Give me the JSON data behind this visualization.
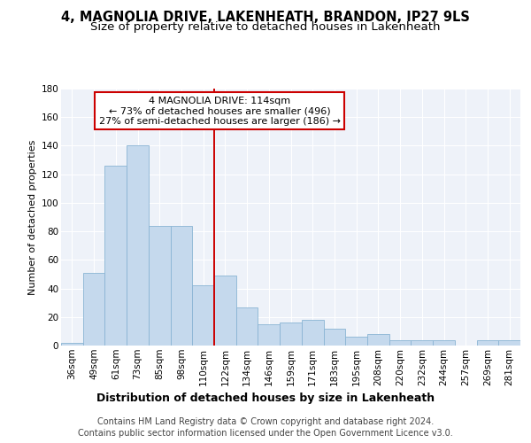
{
  "title": "4, MAGNOLIA DRIVE, LAKENHEATH, BRANDON, IP27 9LS",
  "subtitle": "Size of property relative to detached houses in Lakenheath",
  "xlabel": "Distribution of detached houses by size in Lakenheath",
  "ylabel": "Number of detached properties",
  "categories": [
    "36sqm",
    "49sqm",
    "61sqm",
    "73sqm",
    "85sqm",
    "98sqm",
    "110sqm",
    "122sqm",
    "134sqm",
    "146sqm",
    "159sqm",
    "171sqm",
    "183sqm",
    "195sqm",
    "208sqm",
    "220sqm",
    "232sqm",
    "244sqm",
    "257sqm",
    "269sqm",
    "281sqm"
  ],
  "values": [
    2,
    51,
    126,
    140,
    84,
    84,
    42,
    49,
    27,
    15,
    16,
    18,
    12,
    6,
    8,
    4,
    4,
    4,
    0,
    4,
    4
  ],
  "bar_color": "#c5d9ed",
  "bar_edge_color": "#8ab4d4",
  "background_color": "#eef2f9",
  "grid_color": "#ffffff",
  "vline_color": "#cc0000",
  "annotation_line1": "4 MAGNOLIA DRIVE: 114sqm",
  "annotation_line2": "← 73% of detached houses are smaller (496)",
  "annotation_line3": "27% of semi-detached houses are larger (186) →",
  "annotation_box_color": "#ffffff",
  "annotation_box_edge": "#cc0000",
  "ylim": [
    0,
    180
  ],
  "yticks": [
    0,
    20,
    40,
    60,
    80,
    100,
    120,
    140,
    160,
    180
  ],
  "footer_line1": "Contains HM Land Registry data © Crown copyright and database right 2024.",
  "footer_line2": "Contains public sector information licensed under the Open Government Licence v3.0.",
  "title_fontsize": 10.5,
  "subtitle_fontsize": 9.5,
  "xlabel_fontsize": 9,
  "ylabel_fontsize": 8,
  "tick_fontsize": 7.5,
  "annotation_fontsize": 8,
  "footer_fontsize": 7
}
